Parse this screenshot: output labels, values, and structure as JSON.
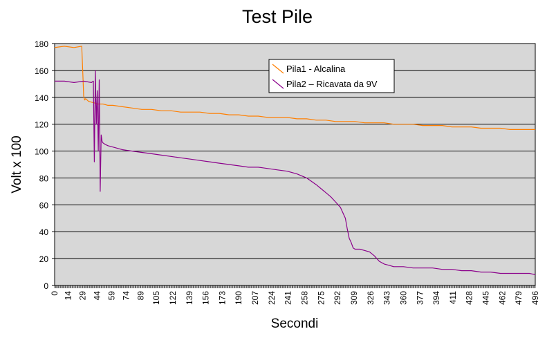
{
  "chart_data": {
    "type": "line",
    "title": "Test Pile",
    "xlabel": "Secondi",
    "ylabel": "Volt x 100",
    "xlim": [
      0,
      496
    ],
    "ylim": [
      0,
      180
    ],
    "y_ticks": [
      0,
      20,
      40,
      60,
      80,
      100,
      120,
      140,
      160,
      180
    ],
    "x_tick_labels": [
      "0",
      "14",
      "29",
      "44",
      "59",
      "74",
      "89",
      "105",
      "122",
      "139",
      "156",
      "173",
      "190",
      "207",
      "224",
      "241",
      "258",
      "275",
      "292",
      "309",
      "326",
      "343",
      "360",
      "377",
      "394",
      "411",
      "428",
      "445",
      "462",
      "479",
      "496"
    ],
    "grid": "horizontal",
    "legend_position": "top-center",
    "plot_background": "#d7d7d7",
    "series": [
      {
        "name": "Pila1 - Alcalina",
        "color": "#ff7f00",
        "x": [
          0,
          10,
          20,
          28,
          29,
          30,
          31,
          32,
          35,
          40,
          45,
          50,
          55,
          60,
          70,
          80,
          90,
          100,
          110,
          120,
          130,
          140,
          150,
          160,
          170,
          180,
          190,
          200,
          210,
          220,
          230,
          240,
          250,
          260,
          270,
          280,
          290,
          300,
          310,
          320,
          330,
          340,
          350,
          360,
          370,
          380,
          390,
          400,
          410,
          420,
          430,
          440,
          450,
          460,
          470,
          480,
          490,
          496
        ],
        "y": [
          177,
          178,
          177,
          178,
          160,
          141,
          138,
          139,
          137,
          136,
          135,
          135,
          134,
          134,
          133,
          132,
          131,
          131,
          130,
          130,
          129,
          129,
          129,
          128,
          128,
          127,
          127,
          126,
          126,
          125,
          125,
          125,
          124,
          124,
          123,
          123,
          122,
          122,
          122,
          121,
          121,
          121,
          120,
          120,
          120,
          119,
          119,
          119,
          118,
          118,
          118,
          117,
          117,
          117,
          116,
          116,
          116,
          116
        ]
      },
      {
        "name": "Pila2 – Ricavata da 9V",
        "color": "#8b008b",
        "x": [
          0,
          10,
          20,
          30,
          38,
          40,
          41,
          42,
          43,
          44,
          45,
          46,
          47,
          48,
          49,
          50,
          52,
          55,
          60,
          70,
          80,
          90,
          100,
          110,
          120,
          130,
          140,
          150,
          160,
          170,
          180,
          190,
          200,
          210,
          220,
          230,
          240,
          250,
          260,
          270,
          275,
          280,
          285,
          290,
          295,
          300,
          302,
          304,
          306,
          308,
          310,
          315,
          320,
          325,
          330,
          335,
          340,
          345,
          350,
          360,
          370,
          380,
          390,
          400,
          410,
          420,
          430,
          440,
          450,
          460,
          470,
          480,
          490,
          496
        ],
        "y": [
          152,
          152,
          151,
          152,
          151,
          152,
          92,
          160,
          120,
          145,
          100,
          153,
          70,
          112,
          107,
          106,
          105,
          104,
          103,
          101,
          100,
          99,
          98,
          97,
          96,
          95,
          94,
          93,
          92,
          91,
          90,
          89,
          88,
          88,
          87,
          86,
          85,
          83,
          80,
          75,
          72,
          69,
          66,
          62,
          58,
          50,
          42,
          35,
          32,
          28,
          27,
          27,
          26,
          25,
          22,
          18,
          16,
          15,
          14,
          14,
          13,
          13,
          13,
          12,
          12,
          11,
          11,
          10,
          10,
          9,
          9,
          9,
          9,
          8
        ]
      }
    ]
  }
}
